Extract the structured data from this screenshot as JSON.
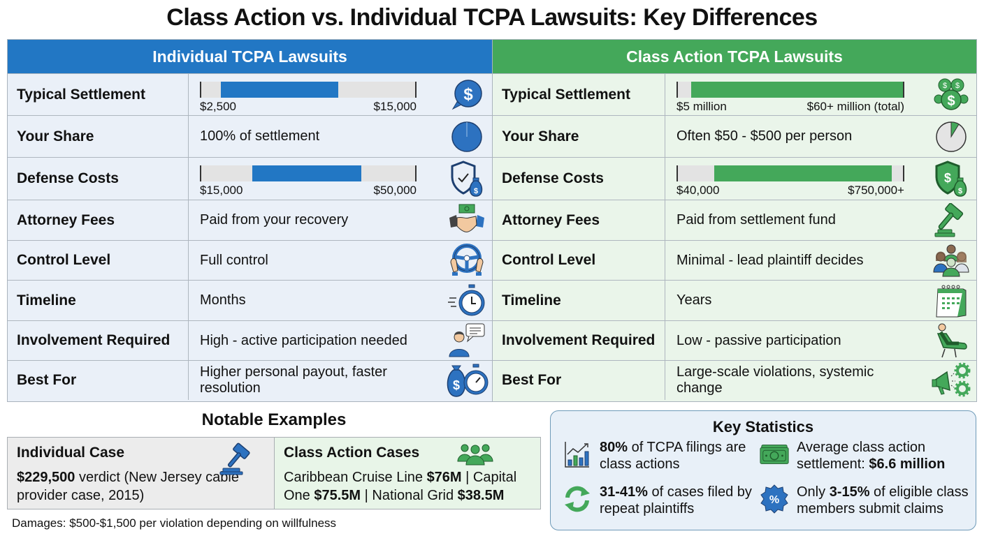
{
  "title": "Class Action vs. Individual TCPA Lawsuits: Key Differences",
  "colors": {
    "individual": "#2277c4",
    "class_action": "#44a85a",
    "individual_bg": "#eaf0f8",
    "class_bg": "#eaf5ea"
  },
  "individual": {
    "header": "Individual TCPA Lawsuits",
    "rows": [
      {
        "label": "Typical Settlement",
        "type": "bar",
        "low": "$2,500",
        "high": "$15,000",
        "fill_start_pct": 9,
        "fill_end_pct": 64,
        "icon": "dollar-chat-icon"
      },
      {
        "label": "Your Share",
        "value": "100% of settlement",
        "icon": "full-pie-icon"
      },
      {
        "label": "Defense Costs",
        "type": "bar",
        "low": "$15,000",
        "high": "$50,000",
        "fill_start_pct": 24,
        "fill_end_pct": 75,
        "icon": "shield-money-icon"
      },
      {
        "label": "Attorney Fees",
        "value": "Paid from your recovery",
        "icon": "handshake-money-icon"
      },
      {
        "label": "Control Level",
        "value": "Full control",
        "icon": "steering-wheel-icon"
      },
      {
        "label": "Timeline",
        "value": "Months",
        "icon": "fast-stopwatch-icon"
      },
      {
        "label": "Involvement Required",
        "value": "High - active participation needed",
        "icon": "person-speech-icon"
      },
      {
        "label": "Best For",
        "value": "Higher personal payout, faster resolution",
        "icon": "moneybag-stopwatch-icon"
      }
    ]
  },
  "class_action": {
    "header": "Class Action TCPA Lawsuits",
    "rows": [
      {
        "label": "Typical Settlement",
        "type": "bar",
        "low": "$5 million",
        "high": "$60+ million (total)",
        "fill_start_pct": 6,
        "fill_end_pct": 100,
        "icon": "coins-icon"
      },
      {
        "label": "Your Share",
        "value": "Often $50 - $500 per person",
        "icon": "small-slice-pie-icon"
      },
      {
        "label": "Defense Costs",
        "type": "bar",
        "low": "$40,000",
        "high": "$750,000+",
        "fill_start_pct": 16,
        "fill_end_pct": 95,
        "icon": "shield-money-icon"
      },
      {
        "label": "Attorney Fees",
        "value": "Paid from settlement fund",
        "icon": "gavel-icon"
      },
      {
        "label": "Control Level",
        "value": "Minimal - lead plaintiff decides",
        "icon": "group-icon"
      },
      {
        "label": "Timeline",
        "value": "Years",
        "icon": "calendar-icon"
      },
      {
        "label": "Involvement Required",
        "value": "Low - passive participation",
        "icon": "reclining-person-icon"
      },
      {
        "label": "Best For",
        "value": "Large-scale violations, systemic change",
        "icon": "megaphone-gears-icon"
      }
    ]
  },
  "examples": {
    "title": "Notable Examples",
    "individual": {
      "heading": "Individual Case",
      "amount": "$229,500",
      "text": " verdict (New Jersey cable provider case, 2015)"
    },
    "class_action": {
      "heading": "Class Action Cases",
      "parts": [
        "Caribbean Cruise Line ",
        "$76M",
        " | Capital One ",
        "$75.5M",
        " | National Grid ",
        "$38.5M"
      ]
    }
  },
  "footnote": "Damages: $500-$1,500 per violation depending on willfulness",
  "stats": {
    "title": "Key Statistics",
    "items": [
      {
        "bold": "80%",
        "text": " of TCPA filings are class actions",
        "icon": "bar-chart-trend-icon"
      },
      {
        "pre": "Average class action settlement: ",
        "bold": "$6.6 million",
        "icon": "cash-bills-icon"
      },
      {
        "bold": "31-41%",
        "text": " of cases filed by repeat plaintiffs",
        "icon": "refresh-arrows-icon"
      },
      {
        "pre": "Only ",
        "bold": "3-15%",
        "text": " of eligible class members submit claims",
        "icon": "percent-badge-icon"
      }
    ]
  }
}
